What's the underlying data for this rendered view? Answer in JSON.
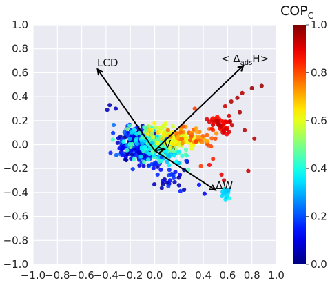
{
  "chart_data": {
    "type": "scatter",
    "xlim": [
      -1.0,
      1.0
    ],
    "ylim": [
      -1.0,
      1.0
    ],
    "x_ticks": [
      "−1.0",
      "−0.8",
      "−0.6",
      "−0.4",
      "−0.2",
      "0.0",
      "0.2",
      "0.4",
      "0.6",
      "0.8",
      "1.0"
    ],
    "y_ticks": [
      "−1.0",
      "−0.8",
      "−0.6",
      "−0.4",
      "−0.2",
      "0.0",
      "0.2",
      "0.4",
      "0.6",
      "0.8",
      "1.0"
    ],
    "grid": true,
    "plot_background": "#EAEAF2",
    "colorbar": {
      "title_main": "COP",
      "title_sub": "C",
      "ticks": [
        "0.0",
        "0.2",
        "0.4",
        "0.6",
        "0.8",
        "1.0"
      ],
      "range": [
        0.0,
        1.0
      ],
      "colormap": "jet"
    },
    "arrows": [
      {
        "label": "LCD",
        "start": [
          0.0,
          -0.05
        ],
        "end": [
          -0.47,
          0.63
        ]
      },
      {
        "label_main": "< Δ",
        "label_sub": "ads",
        "label_end": "H>",
        "start": [
          0.0,
          -0.05
        ],
        "end": [
          0.73,
          0.66
        ]
      },
      {
        "label_main": "ΔW",
        "start": [
          0.0,
          -0.05
        ],
        "end": [
          0.5,
          -0.38
        ]
      },
      {
        "label_main": "V",
        "label_sub": "a",
        "start": [
          0.0,
          -0.05
        ],
        "end": [
          0.08,
          -0.04
        ]
      }
    ],
    "clusters": [
      {
        "name": "blue",
        "cx": -0.12,
        "cy": -0.01,
        "sx": 0.09,
        "sy": 0.07,
        "n": 260,
        "cmin": 0.02,
        "cmax": 0.25,
        "seed": 11
      },
      {
        "name": "cyan",
        "cx": 0.02,
        "cy": -0.02,
        "sx": 0.1,
        "sy": 0.06,
        "n": 200,
        "cmin": 0.3,
        "cmax": 0.5,
        "seed": 23
      },
      {
        "name": "green",
        "cx": 0.17,
        "cy": 0.05,
        "sx": 0.09,
        "sy": 0.04,
        "n": 110,
        "cmin": 0.55,
        "cmax": 0.68,
        "seed": 37
      },
      {
        "name": "orange",
        "cx": 0.32,
        "cy": 0.08,
        "sx": 0.09,
        "sy": 0.05,
        "n": 45,
        "cmin": 0.7,
        "cmax": 0.82,
        "seed": 41
      },
      {
        "name": "red",
        "cx": 0.54,
        "cy": 0.18,
        "sx": 0.05,
        "sy": 0.04,
        "n": 40,
        "cmin": 0.85,
        "cmax": 0.95,
        "seed": 53
      },
      {
        "name": "blue-tail",
        "cx": 0.18,
        "cy": -0.27,
        "sx": 0.1,
        "sy": 0.08,
        "n": 30,
        "cmin": 0.02,
        "cmax": 0.2,
        "seed": 61
      },
      {
        "name": "cyan-tail",
        "cx": 0.58,
        "cy": -0.41,
        "sx": 0.02,
        "sy": 0.02,
        "n": 14,
        "cmin": 0.3,
        "cmax": 0.42,
        "seed": 67
      }
    ],
    "points": [
      {
        "x": 0.88,
        "y": 0.49,
        "c": 0.97
      },
      {
        "x": 0.8,
        "y": 0.47,
        "c": 0.97
      },
      {
        "x": 0.72,
        "y": 0.43,
        "c": 0.95
      },
      {
        "x": 0.68,
        "y": 0.39,
        "c": 0.96
      },
      {
        "x": 0.63,
        "y": 0.36,
        "c": 0.95
      },
      {
        "x": 0.58,
        "y": 0.32,
        "c": 0.92
      },
      {
        "x": 0.7,
        "y": 0.27,
        "c": 0.96
      },
      {
        "x": 0.82,
        "y": 0.05,
        "c": 0.95
      },
      {
        "x": 0.74,
        "y": 0.12,
        "c": 0.94
      },
      {
        "x": 0.77,
        "y": -0.22,
        "c": 0.93
      },
      {
        "x": 0.55,
        "y": -0.25,
        "c": 0.9
      },
      {
        "x": 0.45,
        "y": -0.17,
        "c": 0.88
      },
      {
        "x": 0.38,
        "y": -0.18,
        "c": 0.82
      },
      {
        "x": 0.57,
        "y": -0.3,
        "c": 0.93
      },
      {
        "x": 0.48,
        "y": -0.12,
        "c": 0.85
      },
      {
        "x": -0.37,
        "y": 0.33,
        "c": 0.05
      },
      {
        "x": -0.32,
        "y": 0.3,
        "c": 0.06
      },
      {
        "x": -0.39,
        "y": 0.29,
        "c": 0.06
      },
      {
        "x": 0.41,
        "y": -0.41,
        "c": 0.12
      },
      {
        "x": 0.2,
        "y": -0.34,
        "c": 0.05
      },
      {
        "x": 0.33,
        "y": 0.3,
        "c": 0.82
      },
      {
        "x": 0.48,
        "y": 0.22,
        "c": 0.85
      }
    ]
  }
}
